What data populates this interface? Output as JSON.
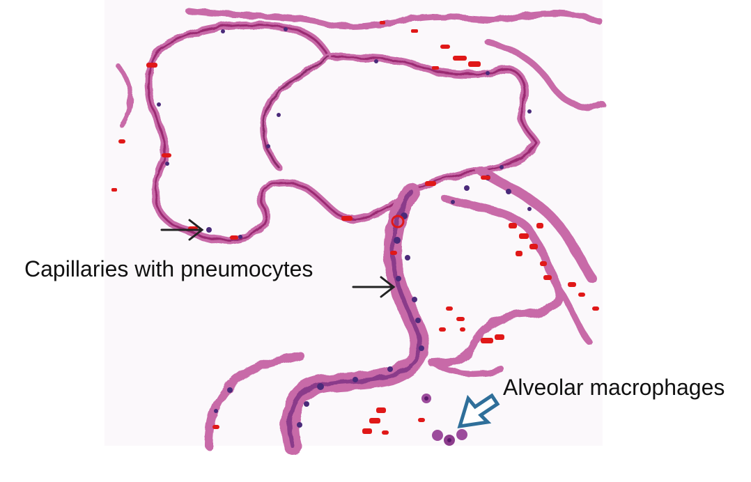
{
  "figure": {
    "subject": "lung-histology-micrograph",
    "labels": {
      "capillaries": "Capillaries with pneumocytes",
      "macrophages": "Alveolar macrophages"
    },
    "colors": {
      "background": "#ffffff",
      "tissue_pink": "#c86aa8",
      "septa_magenta": "#b0306a",
      "nuclei_purple": "#4a2a7a",
      "erythrocyte_red": "#e01818",
      "arrow_black": "#222222",
      "arrow_blue": "#2f6f9a"
    }
  }
}
